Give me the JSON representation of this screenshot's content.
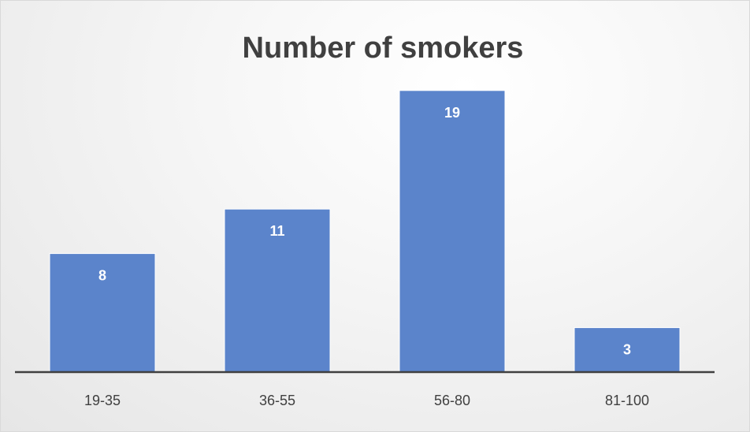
{
  "chart_data": {
    "type": "bar",
    "title": "Number of smokers",
    "xlabel": "",
    "ylabel": "",
    "categories": [
      "19-35",
      "36-55",
      "56-80",
      "81-100"
    ],
    "values": [
      8,
      11,
      19,
      3
    ],
    "data_labels": [
      "8",
      "11",
      "19",
      "3"
    ],
    "ylim": [
      0,
      20
    ],
    "grid": false,
    "legend": "none",
    "bar_color": "#5b84cb",
    "axis_color": "#404040"
  }
}
